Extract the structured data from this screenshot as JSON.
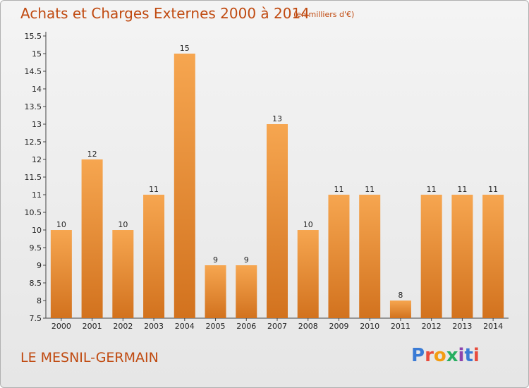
{
  "header": {
    "title": "Achats et Charges Externes 2000 à 2014",
    "subtitle": "(en milliers d'€)"
  },
  "footer": {
    "commune": "LE MESNIL-GERMAIN",
    "logo_letters": [
      "P",
      "r",
      "o",
      "x",
      "i",
      "t",
      "i"
    ],
    "logo_text": "Proxiti"
  },
  "colors": {
    "bar_top": "#f6a650",
    "bar_bottom": "#d2721e",
    "title": "#c04a10",
    "logo": [
      "#3a7bd5",
      "#e84c3d",
      "#f39c12",
      "#27ae60",
      "#8e44ad",
      "#3a7bd5",
      "#e84c3d"
    ]
  },
  "chart_data": {
    "type": "bar",
    "title": "Achats et Charges Externes 2000 à 2014",
    "subtitle": "(en milliers d'€)",
    "categories": [
      "2000",
      "2001",
      "2002",
      "2003",
      "2004",
      "2005",
      "2006",
      "2007",
      "2008",
      "2009",
      "2010",
      "2011",
      "2012",
      "2013",
      "2014"
    ],
    "values": [
      10,
      12,
      10,
      11,
      15,
      9,
      9,
      13,
      10,
      11,
      11,
      8,
      11,
      11,
      11
    ],
    "ylim": [
      7.5,
      15.5
    ],
    "yticks": [
      "7.5",
      "8",
      "8.5",
      "9",
      "9.5",
      "10",
      "10.5",
      "11",
      "11.5",
      "12",
      "12.5",
      "13",
      "13.5",
      "14",
      "14.5",
      "15",
      "15.5"
    ],
    "xlabel": "",
    "ylabel": "",
    "grid": false
  }
}
